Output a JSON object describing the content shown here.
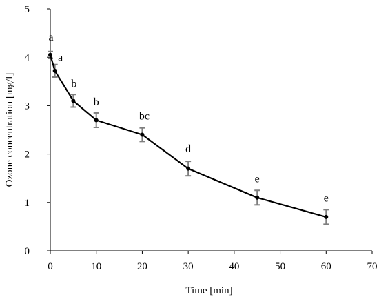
{
  "chart_data": {
    "type": "line",
    "title": "",
    "xlabel": "Time [min]",
    "ylabel": "Ozone concentration [mg/l]",
    "xlim": [
      0,
      70
    ],
    "ylim": [
      0,
      5
    ],
    "xticks": [
      0,
      10,
      20,
      30,
      40,
      50,
      60,
      70
    ],
    "yticks": [
      0,
      1,
      2,
      3,
      4,
      5
    ],
    "grid": false,
    "legend": "none",
    "series": [
      {
        "x": [
          0,
          1,
          5,
          10,
          20,
          30,
          45,
          60
        ],
        "y": [
          4.05,
          3.72,
          3.1,
          2.7,
          2.4,
          1.7,
          1.1,
          0.7
        ],
        "error": [
          0.07,
          0.13,
          0.13,
          0.15,
          0.14,
          0.15,
          0.15,
          0.15
        ],
        "labels": [
          "a",
          "a",
          "b",
          "b",
          "bc",
          "d",
          "e",
          "e"
        ]
      }
    ],
    "colors": {
      "line": "#000000",
      "error_bar": "#7f7f7f",
      "axis": "#000000"
    }
  }
}
